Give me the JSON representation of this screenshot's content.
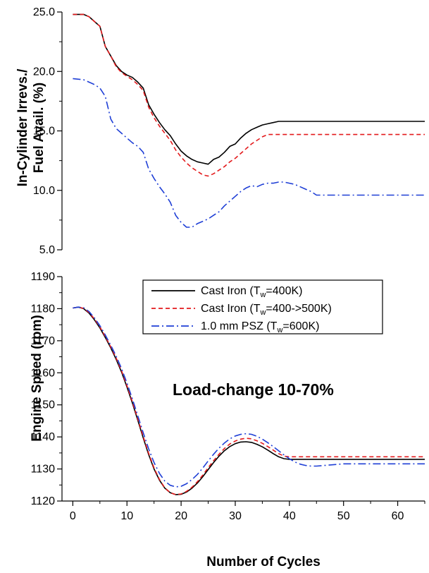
{
  "chart_data": [
    {
      "type": "line",
      "ylabel_lines": [
        "In-Cylinder Irrevs./",
        "Fuel Avail. (%)"
      ],
      "xlim": [
        -2,
        65
      ],
      "ylim": [
        5.0,
        25.0
      ],
      "yticks": [
        5.0,
        10.0,
        15.0,
        20.0,
        25.0
      ],
      "ytick_labels": [
        "5.0",
        "10.0",
        "15.0",
        "20.0",
        "25.0"
      ],
      "grid": false,
      "series": [
        {
          "key": "cast-iron-400",
          "color": "#000000",
          "dash": "",
          "x": [
            0,
            2,
            3,
            4,
            5,
            6,
            7,
            8,
            9,
            10,
            11,
            12,
            13,
            14,
            15,
            16,
            17,
            18,
            19,
            20,
            21,
            22,
            23,
            24,
            25,
            26,
            27,
            28,
            29,
            30,
            31,
            32,
            33,
            34,
            35,
            36,
            37,
            38,
            39,
            40,
            42,
            45,
            50,
            55,
            60,
            65
          ],
          "y": [
            24.8,
            24.8,
            24.6,
            24.2,
            23.8,
            22.1,
            21.3,
            20.5,
            20.0,
            19.7,
            19.5,
            19.1,
            18.6,
            17.2,
            16.4,
            15.7,
            15.1,
            14.6,
            13.9,
            13.3,
            12.9,
            12.6,
            12.4,
            12.3,
            12.2,
            12.6,
            12.8,
            13.2,
            13.7,
            13.9,
            14.4,
            14.8,
            15.1,
            15.3,
            15.5,
            15.6,
            15.7,
            15.8,
            15.8,
            15.8,
            15.8,
            15.8,
            15.8,
            15.8,
            15.8,
            15.8
          ]
        },
        {
          "key": "cast-iron-400-500",
          "color": "#e31a1c",
          "dash": "6,4",
          "x": [
            0,
            2,
            3,
            4,
            5,
            6,
            7,
            8,
            9,
            10,
            11,
            12,
            13,
            14,
            15,
            16,
            17,
            18,
            19,
            20,
            21,
            22,
            23,
            24,
            25,
            26,
            27,
            28,
            29,
            30,
            31,
            32,
            33,
            34,
            35,
            36,
            37,
            38,
            39,
            40,
            45,
            50,
            55,
            60,
            65
          ],
          "y": [
            24.8,
            24.8,
            24.6,
            24.2,
            23.8,
            22.1,
            21.3,
            20.4,
            19.9,
            19.6,
            19.3,
            18.9,
            18.4,
            17.0,
            16.1,
            15.4,
            14.8,
            14.2,
            13.4,
            12.8,
            12.3,
            11.9,
            11.6,
            11.3,
            11.2,
            11.4,
            11.7,
            12.0,
            12.4,
            12.7,
            13.1,
            13.5,
            13.9,
            14.2,
            14.5,
            14.7,
            14.7,
            14.7,
            14.7,
            14.7,
            14.7,
            14.7,
            14.7,
            14.7,
            14.7
          ]
        },
        {
          "key": "psz-600",
          "color": "#1f3fd6",
          "dash": "11,4,2,4",
          "x": [
            0,
            2,
            3,
            4,
            5,
            6,
            7,
            8,
            9,
            10,
            11,
            12,
            13,
            14,
            15,
            16,
            17,
            18,
            19,
            20,
            21,
            22,
            23,
            24,
            25,
            26,
            27,
            28,
            29,
            30,
            31,
            32,
            33,
            34,
            35,
            36,
            37,
            38,
            39,
            40,
            41,
            42,
            43,
            44,
            45,
            50,
            55,
            60,
            65
          ],
          "y": [
            19.4,
            19.3,
            19.1,
            18.9,
            18.6,
            17.9,
            16.0,
            15.2,
            14.8,
            14.4,
            14.0,
            13.7,
            13.2,
            11.8,
            11.0,
            10.3,
            9.7,
            9.0,
            7.9,
            7.3,
            6.9,
            6.9,
            7.2,
            7.4,
            7.6,
            7.9,
            8.2,
            8.7,
            9.1,
            9.5,
            9.9,
            10.2,
            10.4,
            10.3,
            10.5,
            10.6,
            10.6,
            10.7,
            10.7,
            10.6,
            10.5,
            10.3,
            10.1,
            9.9,
            9.6,
            9.6,
            9.6,
            9.6,
            9.6
          ]
        }
      ]
    },
    {
      "type": "line",
      "xlabel": "Number of Cycles",
      "ylabel": "Engine Speed (rpm)",
      "annotation": "Load-change 10-70%",
      "xlim": [
        -2,
        65
      ],
      "ylim": [
        1120,
        1190
      ],
      "xticks": [
        0,
        10,
        20,
        30,
        40,
        50,
        60
      ],
      "yticks": [
        1120,
        1130,
        1140,
        1150,
        1160,
        1170,
        1180,
        1190
      ],
      "grid": false,
      "legend_position": "top-right",
      "legend": [
        {
          "series": "cast-iron-400",
          "text": "Cast Iron (T",
          "sub": "w",
          "rest": "=400K)"
        },
        {
          "series": "cast-iron-400-500",
          "text": "Cast Iron (T",
          "sub": "w",
          "rest": "=400->500K)"
        },
        {
          "series": "psz-600",
          "text": "1.0 mm PSZ (T",
          "sub": "w",
          "rest": "=600K)"
        }
      ],
      "series": [
        {
          "key": "cast-iron-400",
          "color": "#000000",
          "dash": "",
          "x": [
            0,
            1,
            2,
            3,
            4,
            5,
            6,
            7,
            8,
            9,
            10,
            11,
            12,
            13,
            14,
            15,
            16,
            17,
            18,
            19,
            20,
            21,
            22,
            23,
            24,
            25,
            26,
            27,
            28,
            29,
            30,
            31,
            32,
            33,
            34,
            35,
            36,
            37,
            38,
            39,
            40,
            45,
            50,
            55,
            60,
            65
          ],
          "y": [
            1180.2,
            1180.5,
            1180.0,
            1178.6,
            1176.5,
            1174.0,
            1171.0,
            1167.8,
            1164.2,
            1160.2,
            1155.6,
            1150.6,
            1145.2,
            1139.7,
            1134.5,
            1130.0,
            1126.5,
            1124.0,
            1122.6,
            1122.0,
            1122.1,
            1122.8,
            1124.0,
            1125.6,
            1127.6,
            1129.8,
            1132.0,
            1134.0,
            1135.7,
            1137.0,
            1137.9,
            1138.4,
            1138.5,
            1138.3,
            1137.7,
            1136.9,
            1135.9,
            1134.8,
            1133.8,
            1133.2,
            1133.0,
            1133.0,
            1133.0,
            1133.0,
            1133.0,
            1133.0
          ]
        },
        {
          "key": "cast-iron-400-500",
          "color": "#e31a1c",
          "dash": "6,4",
          "x": [
            0,
            1,
            2,
            3,
            4,
            5,
            6,
            7,
            8,
            9,
            10,
            11,
            12,
            13,
            14,
            15,
            16,
            17,
            18,
            19,
            20,
            21,
            22,
            23,
            24,
            25,
            26,
            27,
            28,
            29,
            30,
            31,
            32,
            33,
            34,
            35,
            36,
            37,
            38,
            39,
            40,
            45,
            50,
            55,
            60,
            65
          ],
          "y": [
            1180.2,
            1180.5,
            1180.1,
            1178.8,
            1176.8,
            1174.3,
            1171.3,
            1168.1,
            1164.6,
            1160.6,
            1156.0,
            1151.0,
            1145.6,
            1140.1,
            1134.9,
            1130.3,
            1126.7,
            1124.1,
            1122.6,
            1122.0,
            1122.2,
            1123.0,
            1124.3,
            1126.0,
            1128.1,
            1130.4,
            1132.6,
            1134.6,
            1136.4,
            1137.8,
            1138.7,
            1139.3,
            1139.6,
            1139.4,
            1138.8,
            1138.0,
            1137.0,
            1135.9,
            1134.8,
            1134.0,
            1133.8,
            1133.8,
            1133.8,
            1133.8,
            1133.8,
            1133.8
          ]
        },
        {
          "key": "psz-600",
          "color": "#1f3fd6",
          "dash": "11,4,2,4",
          "x": [
            0,
            1,
            2,
            3,
            4,
            5,
            6,
            7,
            8,
            9,
            10,
            11,
            12,
            13,
            14,
            15,
            16,
            17,
            18,
            19,
            20,
            21,
            22,
            23,
            24,
            25,
            26,
            27,
            28,
            29,
            30,
            31,
            32,
            33,
            34,
            35,
            36,
            37,
            38,
            39,
            40,
            41,
            42,
            43,
            44,
            45,
            50,
            55,
            60,
            65
          ],
          "y": [
            1180.2,
            1180.5,
            1180.3,
            1179.1,
            1177.1,
            1174.7,
            1171.8,
            1168.6,
            1165.2,
            1161.3,
            1156.8,
            1151.9,
            1146.6,
            1141.3,
            1136.3,
            1132.0,
            1128.6,
            1126.2,
            1124.9,
            1124.4,
            1124.6,
            1125.4,
            1126.7,
            1128.3,
            1130.3,
            1132.5,
            1134.6,
            1136.5,
            1138.1,
            1139.4,
            1140.3,
            1140.8,
            1141.0,
            1140.8,
            1140.2,
            1139.3,
            1138.2,
            1137.0,
            1135.7,
            1134.4,
            1133.2,
            1132.2,
            1131.5,
            1131.1,
            1130.9,
            1130.9,
            1131.6,
            1131.6,
            1131.6,
            1131.6
          ]
        }
      ]
    }
  ]
}
